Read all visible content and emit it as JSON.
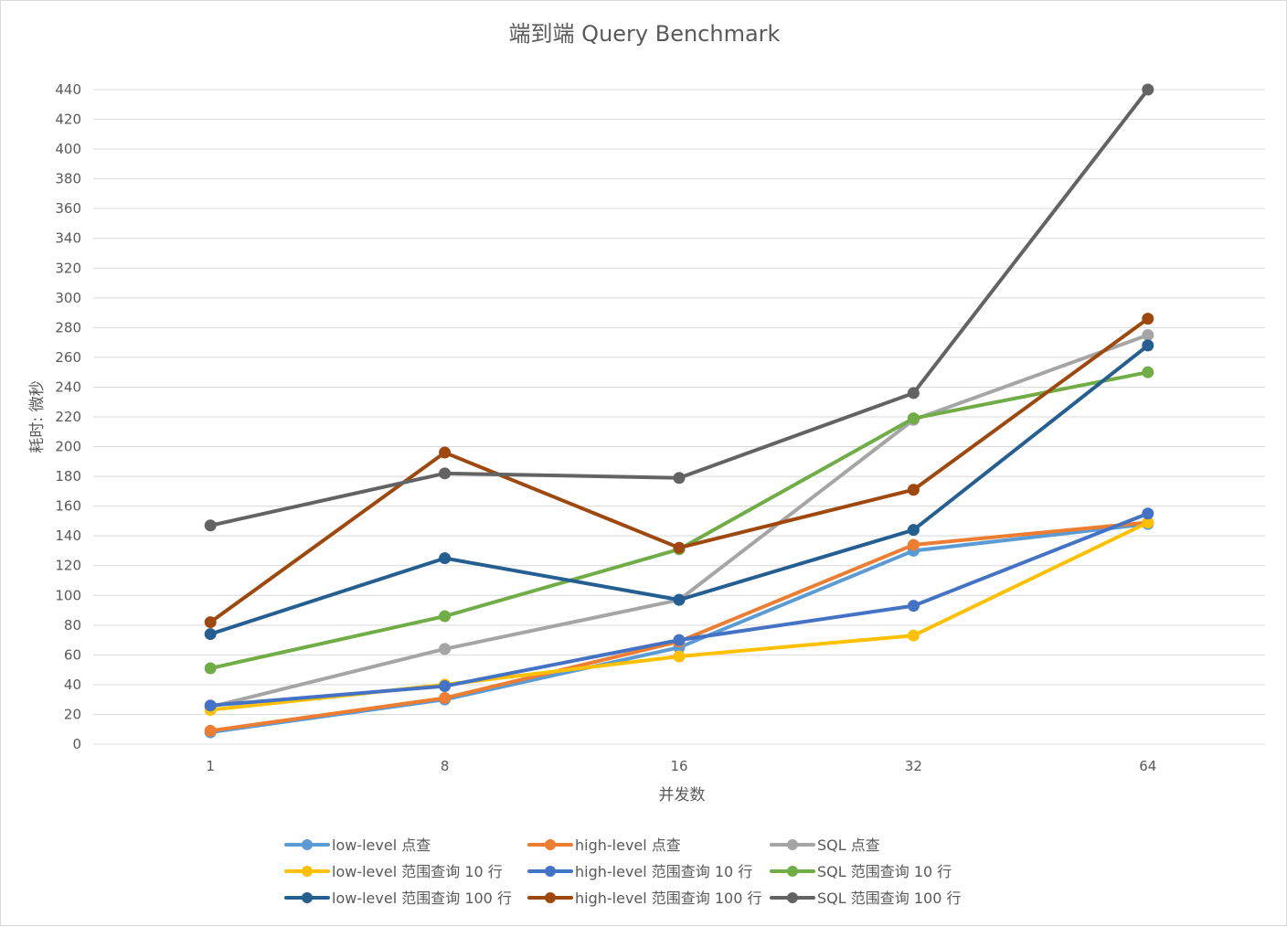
{
  "chart_data": {
    "type": "line",
    "title": "端到端 Query Benchmark",
    "xlabel": "并发数",
    "ylabel": "耗时: 微秒",
    "categories": [
      "1",
      "8",
      "16",
      "32",
      "64"
    ],
    "ylim": [
      0,
      440
    ],
    "ytick_step": 20,
    "grid": true,
    "legend_position": "bottom",
    "series": [
      {
        "name": "low-level 点查",
        "color": "#5b9bd5",
        "values": [
          8,
          30,
          65,
          130,
          148
        ]
      },
      {
        "name": "high-level 点查",
        "color": "#ed7d31",
        "values": [
          9,
          31,
          69,
          134,
          149
        ]
      },
      {
        "name": "SQL 点查",
        "color": "#a5a5a5",
        "values": [
          25,
          64,
          97,
          218,
          275
        ]
      },
      {
        "name": "low-level 范围查询 10 行",
        "color": "#ffc000",
        "values": [
          23,
          40,
          59,
          73,
          149
        ]
      },
      {
        "name": "high-level 范围查询 10 行",
        "color": "#4472c4",
        "values": [
          26,
          39,
          70,
          93,
          155
        ]
      },
      {
        "name": "SQL 范围查询 10 行",
        "color": "#70ad47",
        "values": [
          51,
          86,
          131,
          219,
          250
        ]
      },
      {
        "name": "low-level 范围查询 100 行",
        "color": "#255e91",
        "values": [
          74,
          125,
          97,
          144,
          268
        ]
      },
      {
        "name": "high-level 范围查询 100 行",
        "color": "#9e480e",
        "values": [
          82,
          196,
          132,
          171,
          286
        ]
      },
      {
        "name": "SQL 范围查询 100 行",
        "color": "#636363",
        "values": [
          147,
          182,
          179,
          236,
          440
        ]
      }
    ]
  }
}
